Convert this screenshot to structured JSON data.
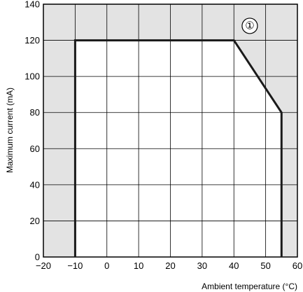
{
  "chart_data": {
    "type": "line",
    "title": "",
    "xlabel": "Ambient temperature (°C)",
    "ylabel": "Maximum current (mA)",
    "xlim": [
      -20,
      60
    ],
    "ylim": [
      0,
      140
    ],
    "xticks": [
      -20,
      -10,
      0,
      10,
      20,
      30,
      40,
      50,
      60
    ],
    "yticks": [
      0,
      20,
      40,
      60,
      80,
      100,
      120,
      140
    ],
    "xtick_labels": [
      "−20",
      "−10",
      "0",
      "10",
      "20",
      "30",
      "40",
      "50",
      "60"
    ],
    "ytick_labels": [
      "0",
      "20",
      "40",
      "60",
      "80",
      "100",
      "120",
      "140"
    ],
    "grid": true,
    "series": [
      {
        "x": [
          -10,
          -10,
          40,
          55,
          55
        ],
        "y": [
          0,
          120,
          120,
          80,
          0
        ]
      }
    ],
    "annotation": {
      "text": "①",
      "x": 45,
      "y": 128
    },
    "colors": {
      "outside": "#e3e3e3",
      "inside": "#ffffff",
      "line": "#1a1a1a",
      "grid": "#000000"
    }
  }
}
